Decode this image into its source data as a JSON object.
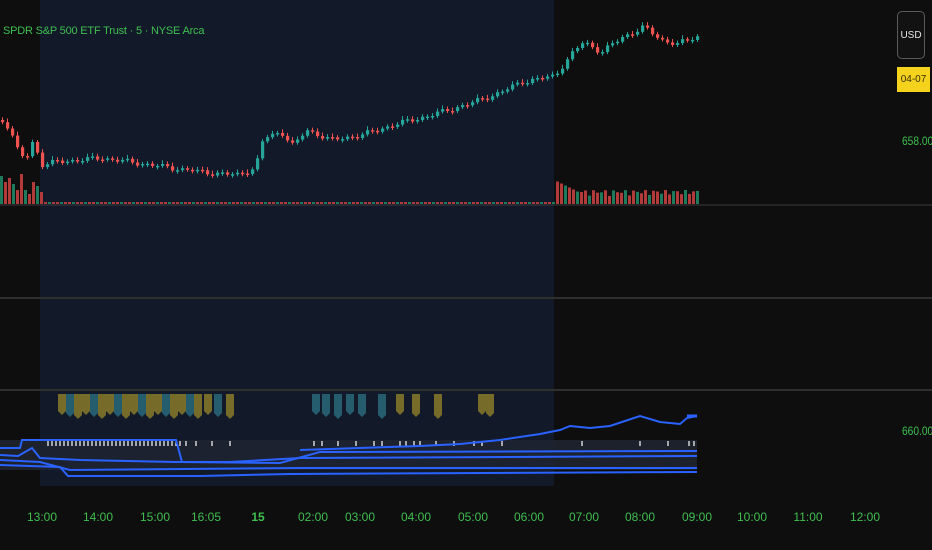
{
  "symbol": {
    "title": "SPDR S&P 500 ETF Trust · 5 · NYSE Arca"
  },
  "currency_button": {
    "label": "USD"
  },
  "date_badge": {
    "label": "04-07"
  },
  "price_axis": {
    "labels": [
      "658.00",
      "660.00"
    ]
  },
  "time_axis": {
    "labels": [
      "13:00",
      "14:00",
      "15:00",
      "16:05",
      "15",
      "02:00",
      "03:00",
      "04:00",
      "05:00",
      "06:00",
      "07:00",
      "08:00",
      "09:00",
      "10:00",
      "11:00",
      "12:00"
    ],
    "bold_label": "15"
  },
  "colors": {
    "background": "#0e0e0e",
    "session_highlight": "#121a2a",
    "up_candle": "#26a69a",
    "down_candle": "#ef5350",
    "volume_up": "#1f7a5c",
    "volume_down": "#b23a3a",
    "indicator_line": "#2962ff",
    "axis_text": "#3fbf4f",
    "pane_separator": "#2f2f2f",
    "badge": "#f5d31c"
  },
  "icons": {
    "signal_flags_gold": "pennant-flag-icon",
    "signal_flags_teal": "pennant-flag-icon"
  }
}
